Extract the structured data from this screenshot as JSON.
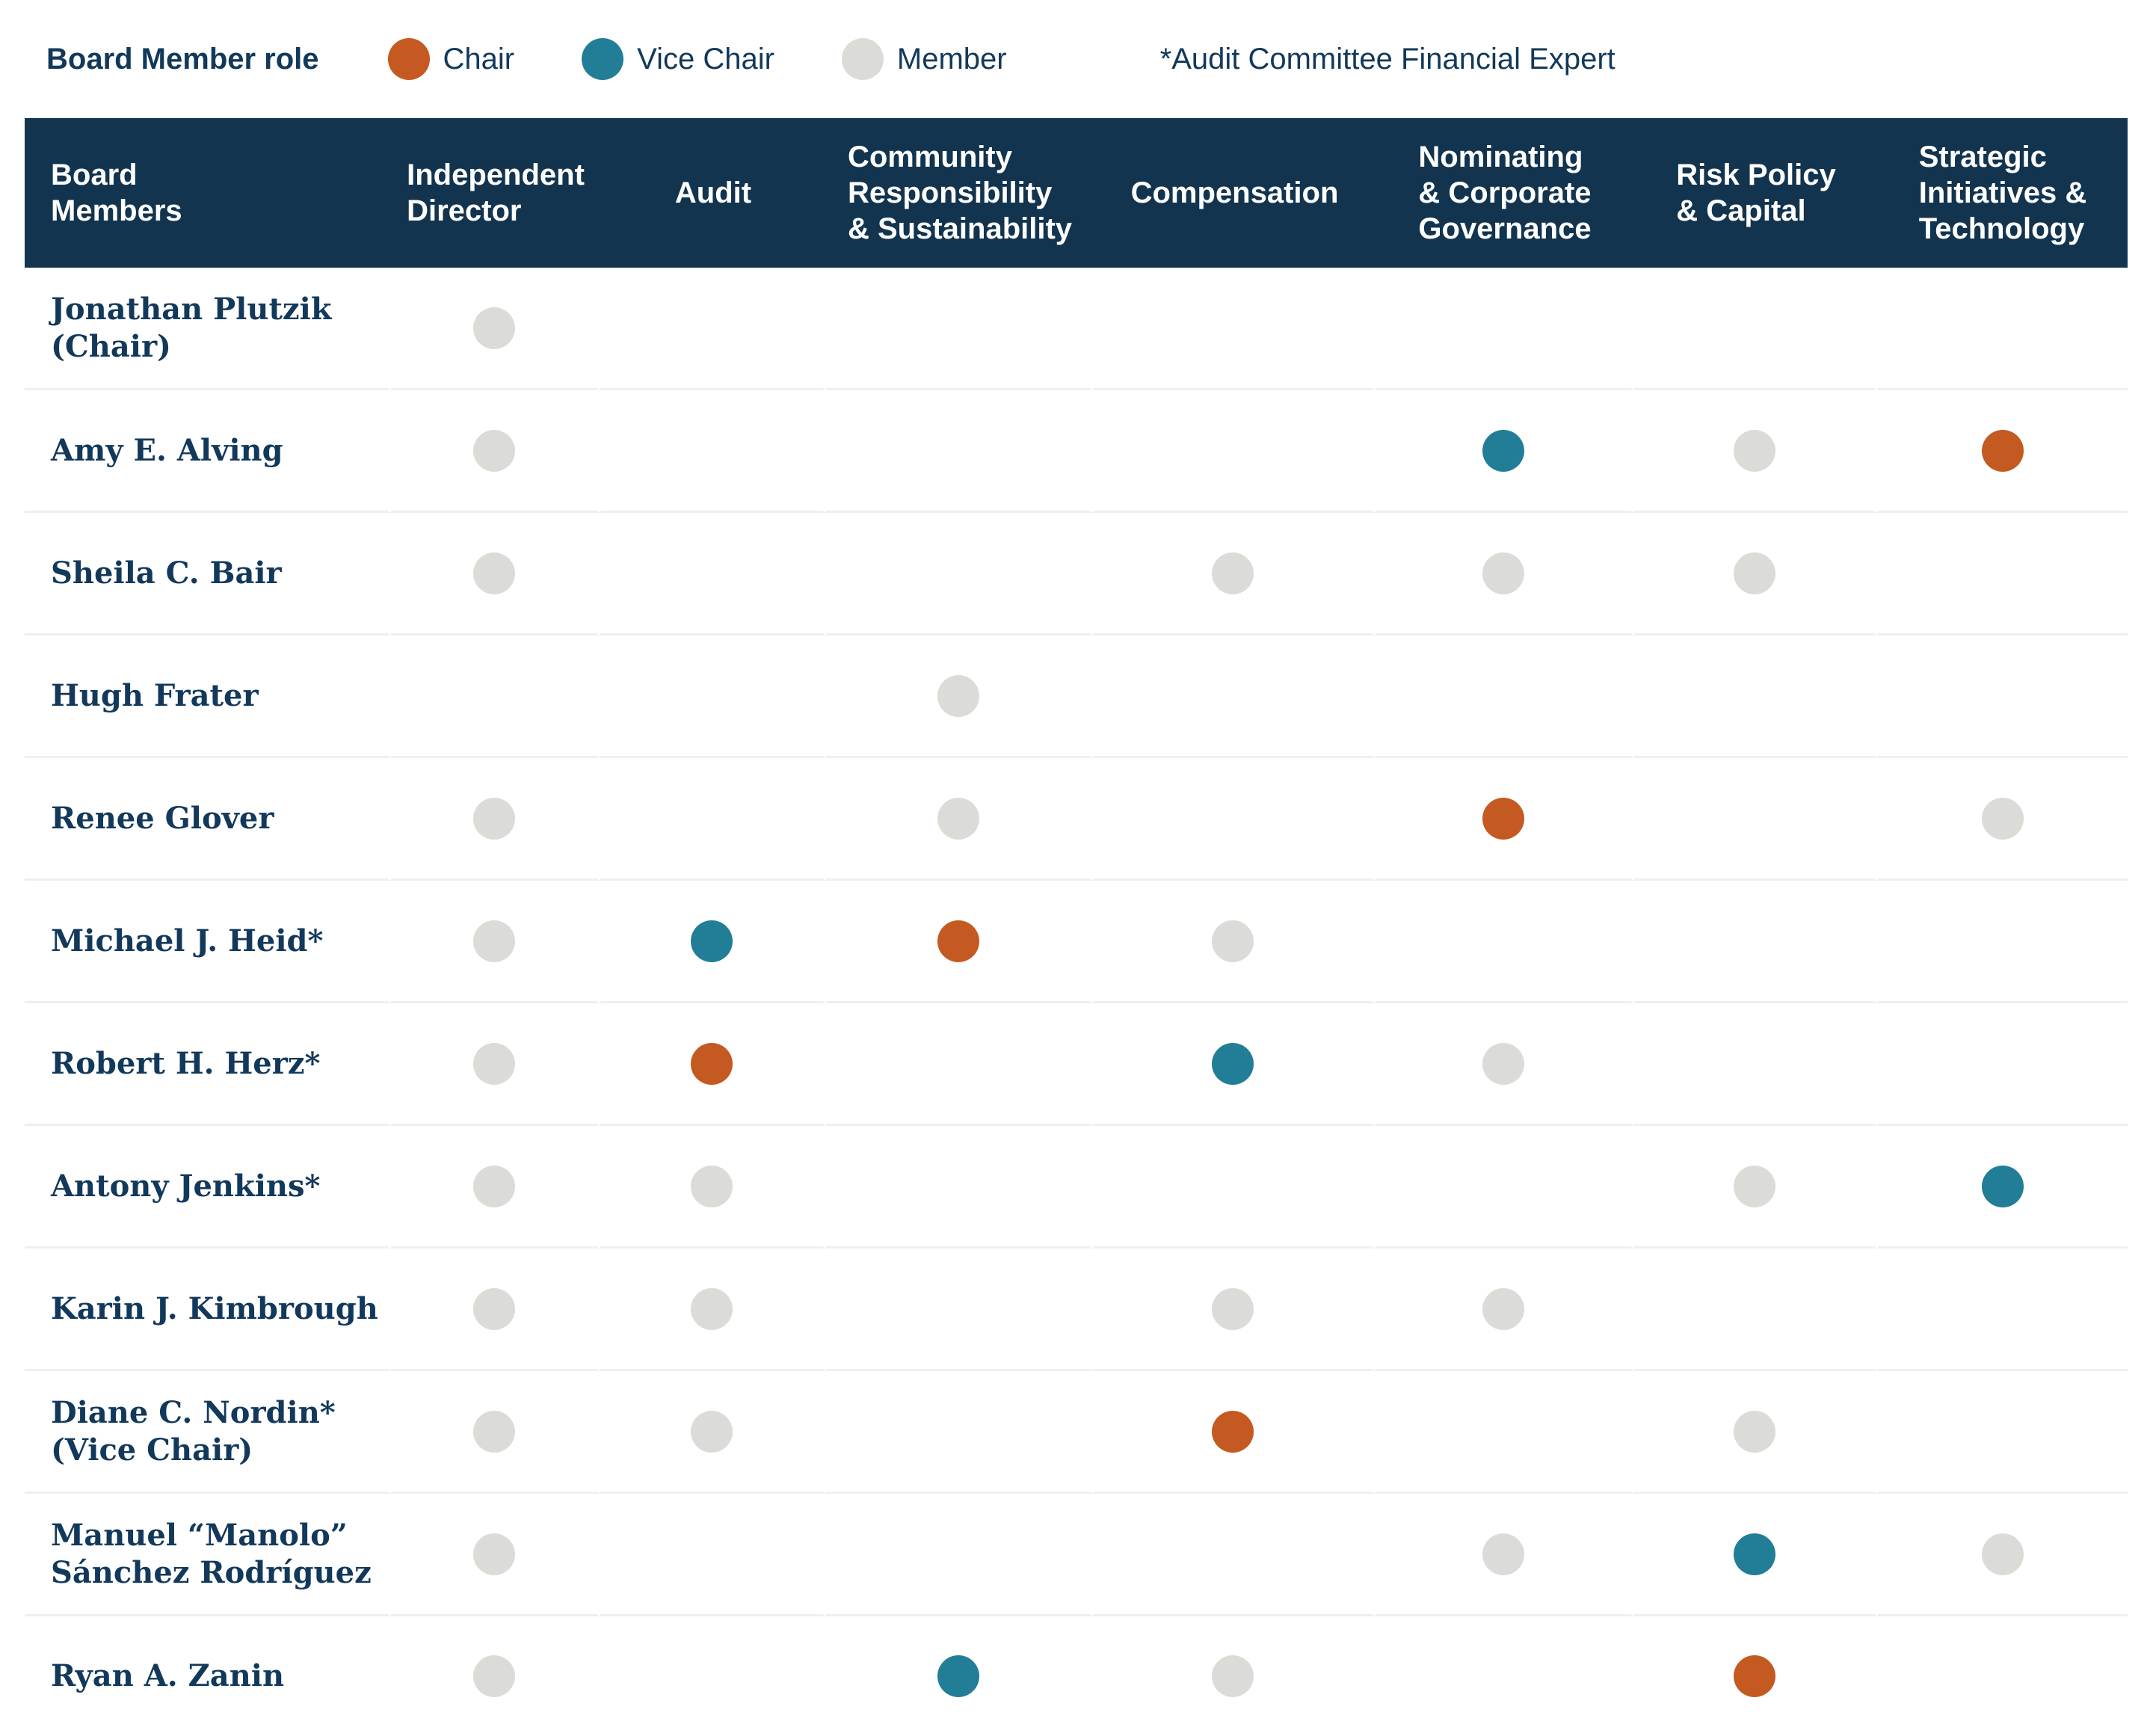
{
  "colors": {
    "chair": "#C45A21",
    "vice_chair": "#217E96",
    "member": "#DBDBD8",
    "header_bg": "#12344F",
    "text_navy": "#12395B",
    "divider": "#EFEFEF"
  },
  "legend": {
    "title": "Board Member role",
    "items": [
      {
        "role": "chair",
        "label": "Chair"
      },
      {
        "role": "vice_chair",
        "label": "Vice Chair"
      },
      {
        "role": "member",
        "label": "Member"
      }
    ],
    "note": "*Audit Committee Financial Expert"
  },
  "chart_data": {
    "type": "table",
    "columns": [
      {
        "id": "board_members",
        "label": "Board\nMembers"
      },
      {
        "id": "independent_director",
        "label": "Independent\nDirector"
      },
      {
        "id": "audit",
        "label": "Audit"
      },
      {
        "id": "community_responsibility_sustainability",
        "label": "Community\nResponsibility\n& Sustainability"
      },
      {
        "id": "compensation",
        "label": "Compensation"
      },
      {
        "id": "nominating_corporate_governance",
        "label": "Nominating\n& Corporate\nGovernance"
      },
      {
        "id": "risk_policy_capital",
        "label": "Risk Policy\n& Capital"
      },
      {
        "id": "strategic_initiatives_technology",
        "label": "Strategic\nInitiatives &\nTechnology"
      }
    ],
    "rows": [
      {
        "name": "Jonathan Plutzik\n(Chair)",
        "roles": [
          "member",
          null,
          null,
          null,
          null,
          null,
          null
        ]
      },
      {
        "name": "Amy E. Alving",
        "roles": [
          "member",
          null,
          null,
          null,
          "vice_chair",
          "member",
          "chair"
        ]
      },
      {
        "name": "Sheila C. Bair",
        "roles": [
          "member",
          null,
          null,
          "member",
          "member",
          "member",
          null
        ]
      },
      {
        "name": "Hugh Frater",
        "roles": [
          null,
          null,
          "member",
          null,
          null,
          null,
          null
        ]
      },
      {
        "name": "Renee Glover",
        "roles": [
          "member",
          null,
          "member",
          null,
          "chair",
          null,
          "member"
        ]
      },
      {
        "name": "Michael J. Heid*",
        "roles": [
          "member",
          "vice_chair",
          "chair",
          "member",
          null,
          null,
          null
        ]
      },
      {
        "name": "Robert H. Herz*",
        "roles": [
          "member",
          "chair",
          null,
          "vice_chair",
          "member",
          null,
          null
        ]
      },
      {
        "name": "Antony Jenkins*",
        "roles": [
          "member",
          "member",
          null,
          null,
          null,
          "member",
          "vice_chair"
        ]
      },
      {
        "name": "Karin J. Kimbrough",
        "roles": [
          "member",
          "member",
          null,
          "member",
          "member",
          null,
          null
        ]
      },
      {
        "name": "Diane C. Nordin*\n(Vice Chair)",
        "roles": [
          "member",
          "member",
          null,
          "chair",
          null,
          "member",
          null
        ]
      },
      {
        "name": "Manuel “Manolo”\nSánchez Rodríguez",
        "roles": [
          "member",
          null,
          null,
          null,
          "member",
          "vice_chair",
          "member"
        ]
      },
      {
        "name": "Ryan A. Zanin",
        "roles": [
          "member",
          null,
          "vice_chair",
          "member",
          null,
          "chair",
          null
        ]
      }
    ]
  }
}
